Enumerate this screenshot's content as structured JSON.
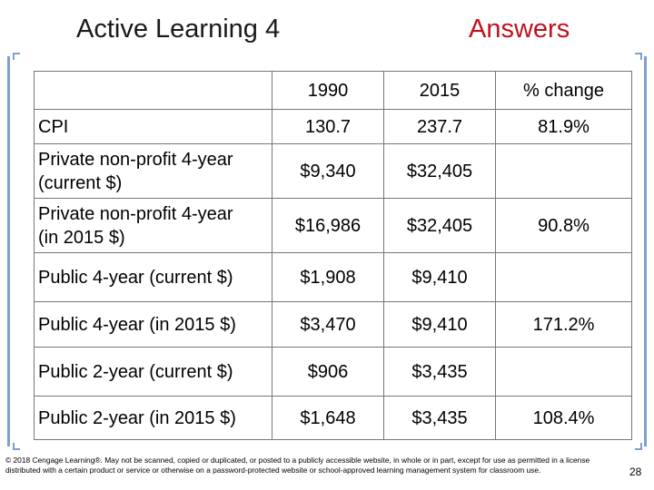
{
  "title_left": "Active Learning 4",
  "title_right": "Answers",
  "accent_color": "#7f9fcf",
  "answer_color": "#c0121f",
  "table": {
    "headers": [
      "",
      "1990",
      "2015",
      "% change"
    ],
    "rows": [
      {
        "label": "CPI",
        "y1990": "130.7",
        "y2015": "237.7",
        "change": "81.9%"
      },
      {
        "label": "Private non-profit 4-year (current $)",
        "y1990": "$9,340",
        "y2015": "$32,405",
        "change": ""
      },
      {
        "label": "Private non-profit 4-year (in 2015 $)",
        "y1990": "$16,986",
        "y2015": "$32,405",
        "change": "90.8%"
      },
      {
        "label": "Public 4-year (current $)",
        "y1990": "$1,908",
        "y2015": "$9,410",
        "change": ""
      },
      {
        "label": "Public 4-year (in 2015 $)",
        "y1990": "$3,470",
        "y2015": "$9,410",
        "change": "171.2%"
      },
      {
        "label": "Public 2-year (current $)",
        "y1990": "$906",
        "y2015": "$3,435",
        "change": ""
      },
      {
        "label": "Public 2-year (in 2015 $)",
        "y1990": "$1,648",
        "y2015": "$3,435",
        "change": "108.4%"
      }
    ]
  },
  "footer": "© 2018 Cengage Learning®. May not be scanned, copied or duplicated, or posted to a publicly accessible website, in whole or in part, except for use as permitted in a license distributed with a certain product or service or otherwise on a password-protected website or school-approved learning management system for classroom use.",
  "page_number": "28"
}
